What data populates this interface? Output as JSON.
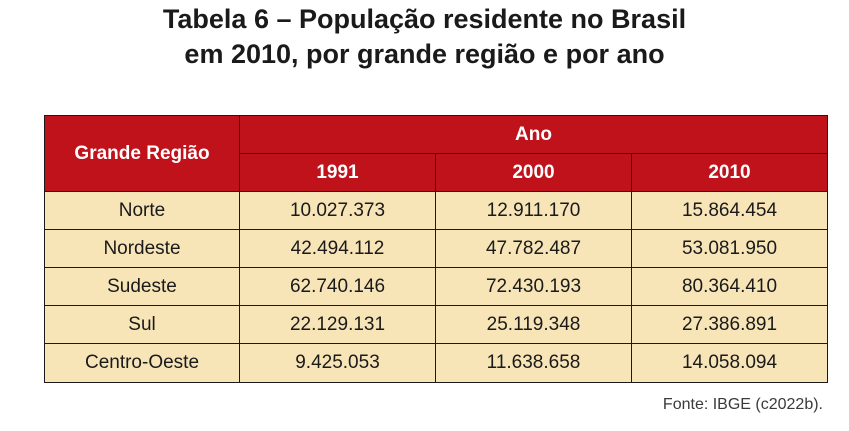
{
  "title": {
    "line1": "Tabela 6 – População residente no Brasil",
    "line2": "em 2010, por grande região e por ano"
  },
  "table": {
    "region_header": "Grande Região",
    "year_group_header": "Ano",
    "years": [
      "1991",
      "2000",
      "2010"
    ],
    "rows": [
      {
        "region": "Norte",
        "values": [
          "10.027.373",
          "12.911.170",
          "15.864.454"
        ]
      },
      {
        "region": "Nordeste",
        "values": [
          "42.494.112",
          "47.782.487",
          "53.081.950"
        ]
      },
      {
        "region": "Sudeste",
        "values": [
          "62.740.146",
          "72.430.193",
          "80.364.410"
        ]
      },
      {
        "region": "Sul",
        "values": [
          "22.129.131",
          "25.119.348",
          "27.386.891"
        ]
      },
      {
        "region": "Centro-Oeste",
        "values": [
          "9.425.053",
          "11.638.658",
          "14.058.094"
        ]
      }
    ]
  },
  "source": "Fonte: IBGE (c2022b).",
  "colors": {
    "header_bg": "#c0121b",
    "cell_bg": "#f7e4b7",
    "border": "#1a1a1a"
  }
}
